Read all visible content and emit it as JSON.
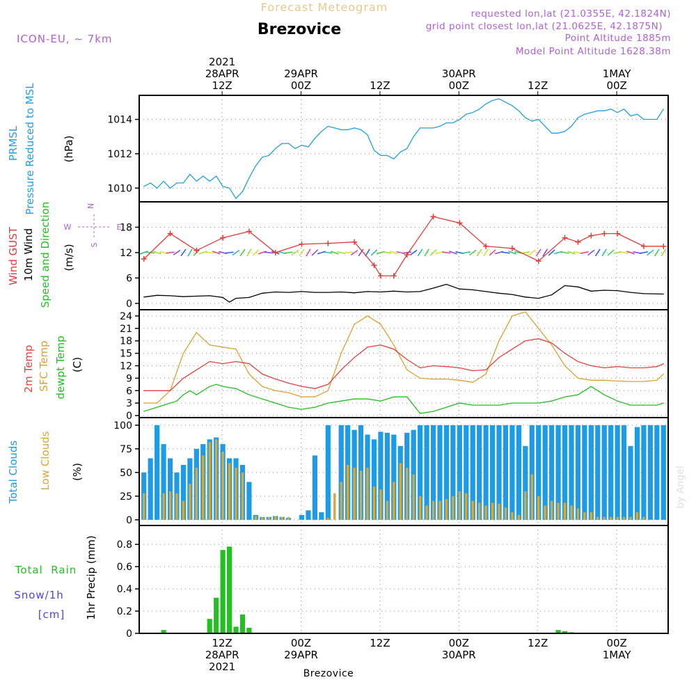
{
  "header": {
    "product_title": "Forecast Meteogram",
    "location": "Brezovice",
    "model": "ICON-EU, ~ 7km",
    "requested": "requested lon,lat (21.0355E, 42.1824N)",
    "gridpoint": "grid point closest lon,lat (21.0625E, 42.1875N)",
    "point_alt": "Point Altitude 1885m",
    "model_alt": "Model Point Altitude 1628.38m",
    "bottom_location": "Brezovice",
    "credit": "by Angel"
  },
  "colors": {
    "pressure": "#1fa0e6",
    "gust": "#e83a3a",
    "wind": "#000000",
    "temp": "#e84040",
    "sfc": "#e0a030",
    "dewpt": "#22c022",
    "total_cloud": "#1e9be6",
    "low_cloud": "#d8a838",
    "rain": "#22c022",
    "snow": "#4848e8",
    "compass": "#b060d8",
    "header": "#b060d8",
    "title_faded": "#e8c890"
  },
  "time_axis": {
    "top": [
      {
        "lines": [
          "2021",
          "28APR",
          "12Z"
        ]
      },
      {
        "lines": [
          "29APR",
          "00Z"
        ]
      },
      {
        "lines": [
          "12Z"
        ]
      },
      {
        "lines": [
          "30APR",
          "00Z"
        ]
      },
      {
        "lines": [
          "12Z"
        ]
      },
      {
        "lines": [
          "1MAY",
          "00Z"
        ]
      }
    ],
    "bottom": [
      {
        "lines": [
          "12Z",
          "28APR",
          "2021"
        ]
      },
      {
        "lines": [
          "00Z",
          "29APR"
        ]
      },
      {
        "lines": [
          "12Z"
        ]
      },
      {
        "lines": [
          "00Z",
          "30APR"
        ]
      },
      {
        "lines": [
          "12Z"
        ]
      },
      {
        "lines": [
          "00Z",
          "1MAY"
        ]
      }
    ]
  },
  "panels": {
    "pressure": {
      "labels": [
        "PRMSL",
        "Pressure Reduced to MSL"
      ],
      "unit": "(hPa)",
      "yticks": [
        "1010",
        "1012",
        "1014"
      ]
    },
    "wind": {
      "labels": [
        "Wind GUST",
        "10m Wind",
        "Speed and Direction"
      ],
      "unit": "(m/s)",
      "yticks": [
        "0",
        "6",
        "12",
        "18"
      ],
      "compass": {
        "n": "N",
        "s": "S",
        "w": "W",
        "e": "E"
      }
    },
    "temp": {
      "labels": [
        "2m Temp",
        "SFC Temp",
        "dewpt Temp"
      ],
      "unit": "(C)",
      "yticks": [
        "0",
        "3",
        "6",
        "9",
        "12",
        "15",
        "18",
        "21",
        "24"
      ]
    },
    "cloud": {
      "labels": [
        "Total Clouds",
        "Low Clouds"
      ],
      "unit": "(%)",
      "yticks": [
        "0",
        "25",
        "50",
        "75",
        "100"
      ]
    },
    "precip": {
      "labels": [
        "Total  Rain",
        "Snow/1h",
        "[cm]"
      ],
      "unit": "1hr Precip (mm)",
      "yticks": [
        "0",
        "0.2",
        "0.4",
        "0.6",
        "0.8"
      ]
    }
  },
  "chart_data": [
    {
      "type": "line",
      "name": "pressure",
      "x": [
        0,
        1,
        2,
        3,
        4,
        5,
        6,
        7,
        8,
        9,
        10,
        11,
        12,
        13,
        14,
        15,
        16,
        17,
        18,
        19,
        20,
        21,
        22,
        23,
        24,
        25,
        26,
        27,
        28,
        29,
        30,
        31,
        32,
        33,
        34,
        35,
        36,
        37,
        38,
        39,
        40,
        41,
        42,
        43,
        44,
        45,
        46,
        47,
        48,
        49,
        50,
        51,
        52,
        53,
        54,
        55,
        56,
        57,
        58,
        59,
        60,
        61,
        62,
        63,
        64,
        65,
        66,
        67,
        68,
        69,
        70,
        71,
        72,
        73,
        74,
        75,
        76,
        77,
        78,
        79
      ],
      "values": [
        1010.1,
        1010.3,
        1010.0,
        1010.4,
        1010.0,
        1010.3,
        1010.3,
        1010.8,
        1010.4,
        1010.7,
        1010.4,
        1010.7,
        1010.1,
        1010.0,
        1009.4,
        1009.8,
        1010.6,
        1011.3,
        1011.8,
        1011.9,
        1012.3,
        1012.6,
        1012.6,
        1012.3,
        1012.5,
        1012.4,
        1012.9,
        1013.3,
        1013.6,
        1013.5,
        1013.4,
        1013.4,
        1013.5,
        1013.4,
        1013.1,
        1012.2,
        1011.9,
        1011.9,
        1011.7,
        1012.1,
        1012.3,
        1013.0,
        1013.5,
        1013.5,
        1013.5,
        1013.6,
        1013.8,
        1013.8,
        1014.0,
        1014.3,
        1014.4,
        1014.6,
        1014.9,
        1015.1,
        1015.2,
        1015.0,
        1014.8,
        1014.5,
        1014.1,
        1013.9,
        1014.0,
        1013.6,
        1013.2,
        1013.2,
        1013.3,
        1013.6,
        1014.1,
        1014.3,
        1014.4,
        1014.5,
        1014.5,
        1014.6,
        1014.4,
        1014.6,
        1014.2,
        1014.3,
        1014.0,
        1014.0,
        1014.0,
        1014.6
      ],
      "ylim": [
        1009.2,
        1015.4
      ]
    },
    {
      "type": "line",
      "name": "wind_gust",
      "x": [
        0,
        4,
        8,
        12,
        16,
        20,
        24,
        28,
        32,
        35,
        36,
        38,
        40,
        44,
        48,
        52,
        56,
        60,
        64,
        66,
        68,
        70,
        72,
        76,
        79
      ],
      "values": [
        10.5,
        16.5,
        12.5,
        15.5,
        17.0,
        12.0,
        14.0,
        14.2,
        14.5,
        9.0,
        6.5,
        6.5,
        11.5,
        20.5,
        19.0,
        13.5,
        13.0,
        10.0,
        15.5,
        14.5,
        16.0,
        16.5,
        16.5,
        13.5,
        13.5
      ],
      "ylim": [
        -1.5,
        24
      ]
    },
    {
      "type": "line",
      "name": "wind_speed",
      "x": [
        0,
        2,
        4,
        6,
        8,
        10,
        12,
        13,
        14,
        16,
        18,
        20,
        22,
        24,
        26,
        28,
        30,
        32,
        34,
        36,
        38,
        40,
        42,
        44,
        46,
        48,
        50,
        52,
        54,
        56,
        58,
        60,
        62,
        64,
        66,
        68,
        70,
        72,
        74,
        76,
        79
      ],
      "values": [
        1.5,
        1.9,
        1.8,
        1.6,
        1.7,
        1.8,
        1.4,
        0.3,
        1.2,
        1.4,
        2.4,
        2.7,
        2.6,
        2.8,
        2.6,
        2.6,
        2.7,
        2.5,
        2.8,
        2.7,
        2.9,
        2.7,
        2.8,
        3.6,
        4.5,
        3.4,
        3.2,
        2.8,
        2.4,
        2.1,
        1.5,
        1.2,
        2.0,
        4.2,
        3.9,
        2.9,
        3.1,
        3.0,
        2.6,
        2.3,
        2.2
      ]
    },
    {
      "type": "line",
      "name": "temp_2m",
      "x": [
        0,
        4,
        6,
        8,
        10,
        12,
        14,
        16,
        18,
        20,
        22,
        24,
        26,
        28,
        30,
        32,
        34,
        36,
        38,
        40,
        42,
        44,
        46,
        48,
        50,
        52,
        54,
        56,
        58,
        60,
        62,
        64,
        66,
        68,
        70,
        72,
        74,
        76,
        78,
        79
      ],
      "values": [
        6,
        6,
        9,
        11,
        13,
        12.5,
        13,
        12.5,
        10,
        8.8,
        7.8,
        7,
        6.5,
        7.5,
        11,
        14,
        16.5,
        17,
        16,
        13.5,
        11.5,
        12,
        11.8,
        11.5,
        10.8,
        11,
        14,
        16,
        18,
        18.5,
        17.5,
        15,
        13,
        12,
        11.5,
        11.8,
        11.5,
        11.5,
        11.8,
        12.5
      ],
      "ylim": [
        -0.5,
        25.5
      ]
    },
    {
      "type": "line",
      "name": "temp_sfc",
      "x": [
        0,
        2,
        4,
        6,
        8,
        10,
        12,
        14,
        16,
        18,
        20,
        22,
        24,
        26,
        28,
        30,
        32,
        34,
        36,
        38,
        40,
        42,
        44,
        46,
        48,
        50,
        52,
        54,
        56,
        58,
        60,
        62,
        64,
        66,
        68,
        70,
        72,
        74,
        76,
        78,
        79
      ],
      "values": [
        3,
        3,
        6,
        15,
        20,
        17,
        16.5,
        16,
        10,
        7,
        6,
        5.5,
        4.5,
        4.5,
        6,
        15,
        22,
        24,
        22,
        17,
        11,
        9,
        8.8,
        8.8,
        8.5,
        8,
        10,
        18,
        24,
        25,
        21,
        17,
        12,
        9,
        8.5,
        8.5,
        8.3,
        8.2,
        8.2,
        8.5,
        10
      ],
      "ylim": [
        -0.5,
        25.5
      ]
    },
    {
      "type": "line",
      "name": "dewpt",
      "x": [
        0,
        2,
        4,
        5,
        6,
        7,
        8,
        10,
        11,
        12,
        14,
        16,
        18,
        20,
        22,
        24,
        26,
        28,
        30,
        32,
        34,
        36,
        38,
        40,
        42,
        44,
        46,
        48,
        50,
        52,
        54,
        56,
        58,
        60,
        62,
        64,
        66,
        68,
        70,
        72,
        74,
        76,
        78,
        79
      ],
      "values": [
        1,
        2,
        3,
        3.5,
        5,
        6,
        5,
        7,
        7.5,
        7,
        6.5,
        5,
        4,
        3,
        2,
        1.5,
        2,
        3,
        3.5,
        4,
        4,
        3.5,
        4.5,
        4.5,
        0.5,
        1,
        2,
        3,
        2.5,
        2.5,
        2.5,
        3,
        3,
        3,
        3.5,
        4.5,
        5,
        7,
        5,
        3.5,
        2.5,
        2.5,
        2.5,
        3
      ],
      "ylim": [
        -0.5,
        25.5
      ]
    },
    {
      "type": "bar",
      "name": "total_clouds",
      "values": [
        50,
        65,
        100,
        80,
        65,
        50,
        58,
        65,
        75,
        80,
        85,
        87,
        80,
        65,
        65,
        58,
        40,
        5,
        3,
        3,
        4,
        3,
        2,
        0,
        5,
        10,
        68,
        8,
        100,
        0,
        100,
        100,
        95,
        100,
        90,
        85,
        93,
        92,
        90,
        78,
        92,
        95,
        100,
        100,
        100,
        100,
        100,
        100,
        100,
        100,
        100,
        100,
        100,
        100,
        100,
        100,
        100,
        100,
        78,
        100,
        100,
        100,
        100,
        100,
        100,
        100,
        100,
        100,
        100,
        100,
        100,
        100,
        100,
        100,
        78,
        98,
        100,
        100,
        100,
        100
      ],
      "ylim": [
        0,
        100
      ]
    },
    {
      "type": "bar",
      "name": "low_clouds",
      "values": [
        28,
        0,
        0,
        28,
        30,
        28,
        20,
        38,
        55,
        68,
        82,
        85,
        72,
        60,
        55,
        50,
        0,
        4,
        3,
        3,
        4,
        3,
        3,
        0,
        0,
        0,
        0,
        0,
        2,
        28,
        40,
        58,
        55,
        52,
        55,
        35,
        32,
        20,
        40,
        60,
        55,
        48,
        25,
        15,
        20,
        20,
        22,
        25,
        30,
        28,
        20,
        18,
        15,
        18,
        17,
        13,
        8,
        5,
        30,
        48,
        25,
        15,
        20,
        18,
        18,
        15,
        12,
        8,
        8,
        3,
        3,
        3,
        3,
        3,
        3,
        8,
        3,
        0,
        0,
        0
      ],
      "ylim": [
        0,
        100
      ]
    },
    {
      "type": "bar",
      "name": "precip",
      "values": [
        0,
        0,
        0,
        0.03,
        0,
        0,
        0,
        0,
        0,
        0,
        0.13,
        0.32,
        0.75,
        0.78,
        0.06,
        0.17,
        0.05,
        0,
        0,
        0,
        0,
        0,
        0,
        0,
        0,
        0,
        0,
        0,
        0,
        0,
        0,
        0,
        0,
        0,
        0,
        0,
        0,
        0,
        0,
        0,
        0,
        0,
        0,
        0,
        0,
        0,
        0,
        0,
        0,
        0,
        0,
        0,
        0,
        0,
        0,
        0,
        0,
        0,
        0,
        0,
        0,
        0,
        0,
        0.03,
        0.02,
        0.01,
        0,
        0,
        0,
        0,
        0,
        0,
        0,
        0,
        0,
        0,
        0,
        0,
        0,
        0
      ],
      "ylim": [
        0,
        0.97
      ]
    }
  ]
}
